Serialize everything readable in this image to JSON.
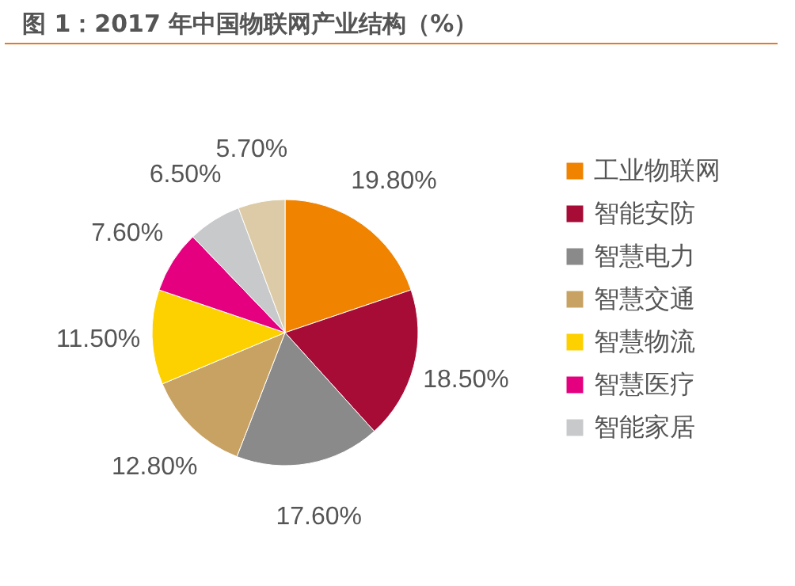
{
  "chart_data": {
    "type": "pie",
    "title": "图 1：2017 年中国物联网产业结构（%）",
    "categories": [
      "工业物联网",
      "智能安防",
      "智慧电力",
      "智慧交通",
      "智慧物流",
      "智慧医疗",
      "智能家居",
      null
    ],
    "values": [
      19.8,
      18.5,
      17.6,
      12.8,
      11.5,
      7.6,
      6.5,
      5.7
    ],
    "value_labels": [
      "19.80%",
      "18.50%",
      "17.60%",
      "12.80%",
      "11.50%",
      "7.60%",
      "6.50%",
      "5.70%"
    ],
    "colors": [
      "#f08300",
      "#a60c36",
      "#8a8a8a",
      "#c7a263",
      "#fdd000",
      "#e4007f",
      "#c8c9cb",
      "#dccba6"
    ],
    "legend": "right"
  }
}
